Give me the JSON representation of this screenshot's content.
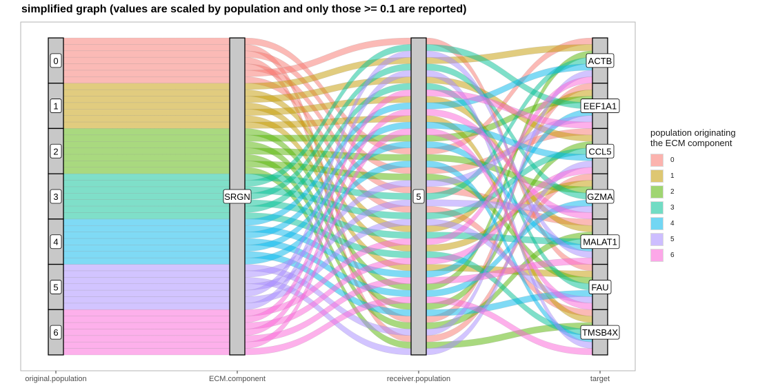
{
  "chart_data": {
    "type": "alluvial",
    "title": "simplified graph (values are scaled by population and only those >= 0.1 are reported)",
    "axes": [
      "original.population",
      "ECM.component",
      "receiver.population",
      "target"
    ],
    "axis_nodes": [
      [
        "0",
        "1",
        "2",
        "3",
        "4",
        "5",
        "6"
      ],
      [
        "SRGN"
      ],
      [
        "5"
      ],
      [
        "ACTB",
        "EEF1A1",
        "CCL5",
        "GZMA",
        "MALAT1",
        "FAU",
        "TMSB4X"
      ]
    ],
    "flows_per_population": 7,
    "flow_value": 1,
    "legend": {
      "title": "population originating\nthe ECM component",
      "position": "right",
      "entries": [
        "0",
        "1",
        "2",
        "3",
        "4",
        "5",
        "6"
      ]
    },
    "colors": {
      "0": "#F8766D",
      "1": "#C49A00",
      "2": "#53B400",
      "3": "#00C094",
      "4": "#00B6EB",
      "5": "#A58AFF",
      "6": "#FB61D7"
    },
    "flow_opacity": 0.5,
    "background": "#ffffff",
    "panel_border": "#b3b3b3",
    "node_fill": "#c8c8c8",
    "grid": false
  }
}
